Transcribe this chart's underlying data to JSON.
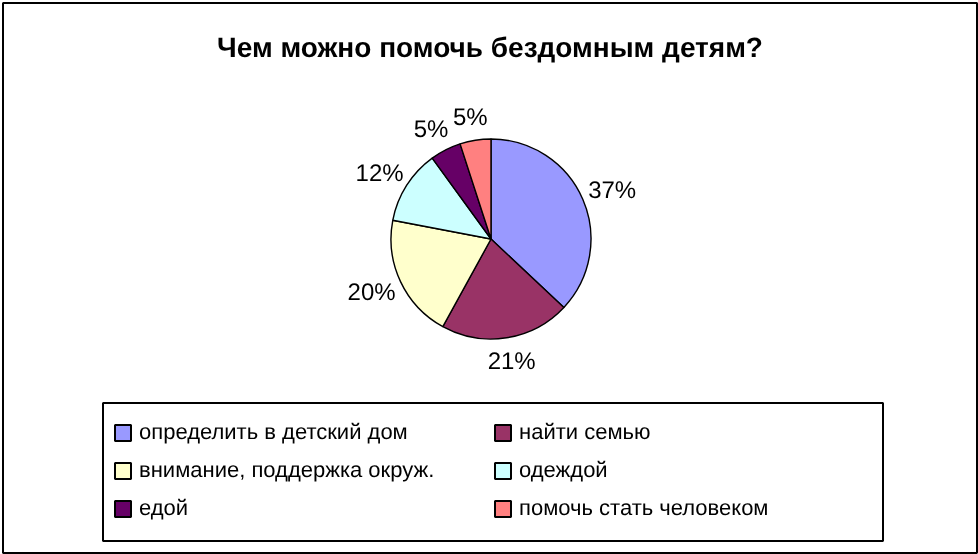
{
  "chart_data": {
    "type": "pie",
    "title": "Чем можно помочь бездомным детям?",
    "categories": [
      "определить в детский дом",
      "найти семью",
      "внимание, поддержка окруж.",
      "одеждой",
      "едой",
      "помочь стать человеком"
    ],
    "values": [
      37,
      21,
      20,
      12,
      5,
      5
    ],
    "colors": [
      "#9999ff",
      "#993366",
      "#ffffcc",
      "#ccffff",
      "#660066",
      "#ff8080"
    ],
    "value_labels": [
      "37%",
      "21%",
      "20%",
      "12%",
      "5%",
      "5%"
    ],
    "legend": "bottom"
  }
}
